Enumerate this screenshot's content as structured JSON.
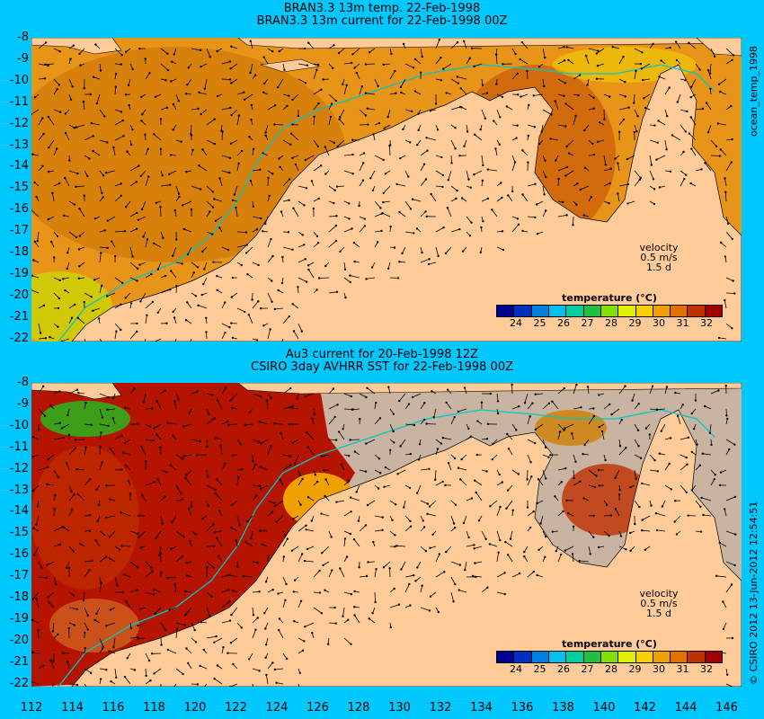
{
  "top_panel": {
    "title_line1": "BRAN3.3 13m temp. 22-Feb-1998",
    "title_line2": "BRAN3.3 13m current for 22-Feb-1998 00Z",
    "side_label": "ocean_temp_1998"
  },
  "bottom_panel": {
    "title_line1": "Au3 current for 20-Feb-1998 12Z",
    "title_line2": "CSIRO 3day AVHRR SST for 22-Feb-1998 00Z",
    "side_label": "© CSIRO 2012  13-Jun-2012 12:54:51"
  },
  "y_axis_labels": [
    "-8",
    "-9",
    "-10",
    "-11",
    "-12",
    "-13",
    "-14",
    "-15",
    "-16",
    "-17",
    "-18",
    "-19",
    "-20",
    "-21",
    "-22"
  ],
  "x_axis_labels": [
    "112",
    "114",
    "116",
    "118",
    "120",
    "122",
    "124",
    "126",
    "128",
    "130",
    "132",
    "134",
    "136",
    "138",
    "140",
    "142",
    "144",
    "146"
  ],
  "velocity_legend": {
    "title": "velocity",
    "speed": "0.5 m/s",
    "time": "1.5 d"
  },
  "colorbar": {
    "title": "temperature (°C)",
    "ticks": [
      "24",
      "25",
      "26",
      "27",
      "28",
      "29",
      "30",
      "31",
      "32"
    ],
    "colors": [
      "#000090",
      "#0030c0",
      "#0080e0",
      "#00c0f0",
      "#00d0a0",
      "#20c040",
      "#80e000",
      "#e0f000",
      "#f8d000",
      "#f0a000",
      "#e07000",
      "#c03000",
      "#a00000"
    ]
  },
  "colors": {
    "background": "#00c8ff",
    "land": "#ffcc99",
    "cloud": "#c8b4a0",
    "warm_sea": "#d2780a",
    "hot_sea": "#b41400",
    "coastline": "#00c8c8"
  }
}
